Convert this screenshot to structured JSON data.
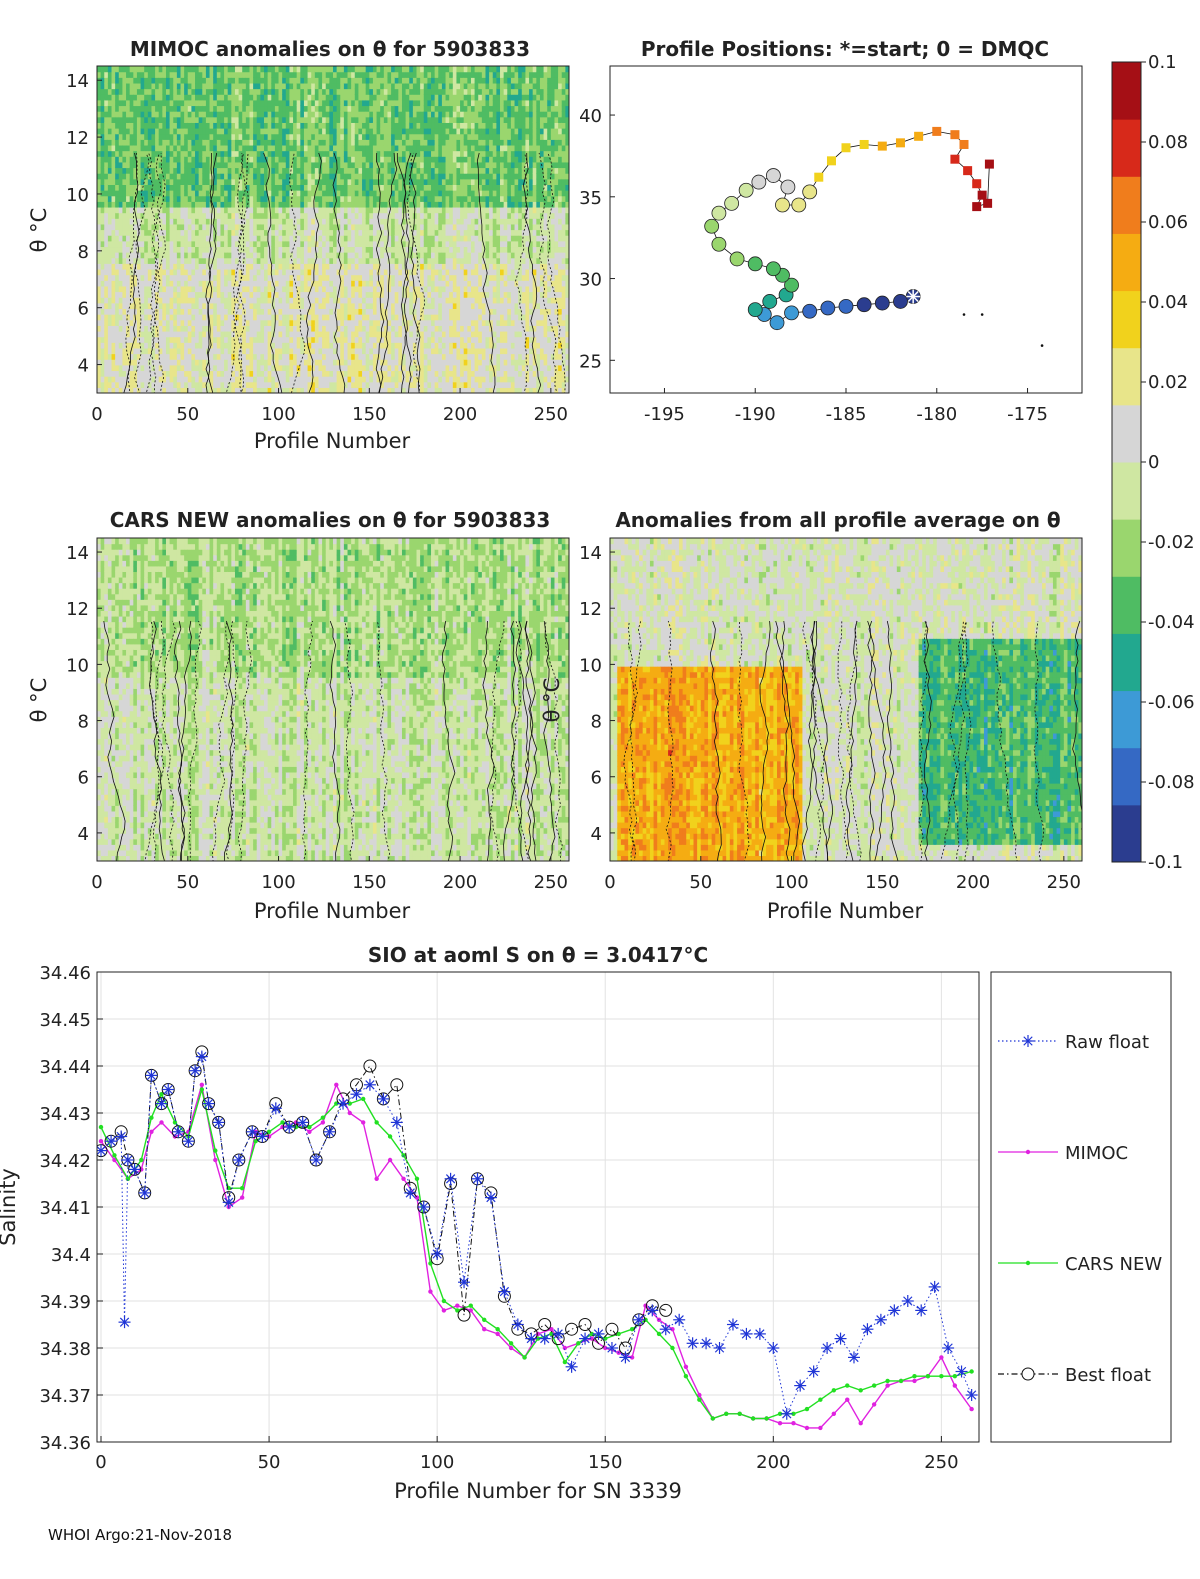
{
  "footer": "WHOI Argo:21-Nov-2018",
  "colorbar": {
    "ticks": [
      "0.1",
      "0.08",
      "0.06",
      "0.04",
      "0.02",
      "0",
      "-0.02",
      "-0.04",
      "-0.06",
      "-0.08",
      "-0.1"
    ],
    "colors": [
      "#2b3d8f",
      "#3569c4",
      "#3d9ad6",
      "#22a88f",
      "#4fbc63",
      "#9ad66e",
      "#cfe7a2",
      "#d6d6d6",
      "#e8e58a",
      "#f1d21c",
      "#f5ac12",
      "#f07d1c",
      "#d7291a",
      "#a50f15"
    ]
  },
  "panels": {
    "mimoc": {
      "title": "MIMOC anomalies on θ  for 5903833",
      "xlabel": "Profile Number",
      "ylabel": "θ °C",
      "xticks": [
        "0",
        "50",
        "100",
        "150",
        "200",
        "250"
      ],
      "yticks": [
        "4",
        "6",
        "8",
        "10",
        "12",
        "14"
      ]
    },
    "positions": {
      "title": "Profile Positions: *=start; 0 = DMQC",
      "xticks": [
        "-195",
        "-190",
        "-185",
        "-180",
        "-175"
      ],
      "yticks": [
        "25",
        "30",
        "35",
        "40"
      ]
    },
    "cars": {
      "title": "CARS NEW anomalies on θ for 5903833",
      "xlabel": "Profile Number",
      "ylabel": "θ °C",
      "xticks": [
        "0",
        "50",
        "100",
        "150",
        "200",
        "250"
      ],
      "yticks": [
        "4",
        "6",
        "8",
        "10",
        "12",
        "14"
      ]
    },
    "avg": {
      "title": "Anomalies from all profile average on θ",
      "xlabel": "Profile Number",
      "ylabel": "θ °C",
      "xticks": [
        "0",
        "50",
        "100",
        "150",
        "200",
        "250"
      ],
      "yticks": [
        "4",
        "6",
        "8",
        "10",
        "12",
        "14"
      ]
    }
  },
  "chart_data": [
    {
      "type": "heatmap",
      "title": "MIMOC anomalies on θ  for 5903833",
      "xlabel": "Profile Number",
      "ylabel": "θ °C",
      "xlim": [
        0,
        260
      ],
      "ylim": [
        3,
        14.5
      ],
      "bands": [
        {
          "from": 9.5,
          "to": 14.5,
          "anomaly": -0.03
        },
        {
          "from": 7.5,
          "to": 9.5,
          "anomaly": -0.005
        },
        {
          "from": 3.0,
          "to": 7.5,
          "anomaly": 0.01
        }
      ]
    },
    {
      "type": "scatter",
      "title": "Profile Positions: *=start; 0 = DMQC",
      "xlim": [
        -198,
        -172
      ],
      "ylim": [
        23,
        43
      ],
      "points": [
        [
          -181.3,
          28.9
        ],
        [
          -182,
          28.6
        ],
        [
          -183,
          28.5
        ],
        [
          -184,
          28.4
        ],
        [
          -185,
          28.3
        ],
        [
          -186,
          28.2
        ],
        [
          -187,
          28.0
        ],
        [
          -188,
          27.9
        ],
        [
          -188.8,
          27.3
        ],
        [
          -189.5,
          27.8
        ],
        [
          -190,
          28.1
        ],
        [
          -189.2,
          28.6
        ],
        [
          -188.3,
          29.0
        ],
        [
          -188,
          29.6
        ],
        [
          -188.5,
          30.2
        ],
        [
          -189,
          30.6
        ],
        [
          -190,
          30.9
        ],
        [
          -191,
          31.2
        ],
        [
          -192,
          32.1
        ],
        [
          -192.4,
          33.2
        ],
        [
          -192,
          34.0
        ],
        [
          -191.3,
          34.6
        ],
        [
          -190.5,
          35.4
        ],
        [
          -189.8,
          35.9
        ],
        [
          -189,
          36.3
        ],
        [
          -188.2,
          35.6
        ],
        [
          -188.5,
          34.5
        ],
        [
          -187.6,
          34.5
        ],
        [
          -187,
          35.3
        ],
        [
          -186.5,
          36.2
        ],
        [
          -185.8,
          37.2
        ],
        [
          -185,
          38.0
        ],
        [
          -184,
          38.2
        ],
        [
          -183,
          38.1
        ],
        [
          -182,
          38.3
        ],
        [
          -181,
          38.7
        ],
        [
          -180,
          39.0
        ],
        [
          -179,
          38.8
        ],
        [
          -178.5,
          38.2
        ],
        [
          -179,
          37.3
        ],
        [
          -178.3,
          36.6
        ],
        [
          -177.8,
          35.8
        ],
        [
          -177.5,
          35.1
        ],
        [
          -177.8,
          34.4
        ],
        [
          -177.2,
          34.6
        ],
        [
          -177.1,
          37.0
        ]
      ],
      "extra_points": [
        [
          -178.5,
          27.8
        ],
        [
          -177.5,
          27.8
        ],
        [
          -174.2,
          25.9
        ]
      ]
    },
    {
      "type": "heatmap",
      "title": "CARS NEW anomalies on θ for 5903833",
      "xlabel": "Profile Number",
      "ylabel": "θ °C",
      "xlim": [
        0,
        260
      ],
      "ylim": [
        3,
        14.5
      ],
      "bands": [
        {
          "from": 9.5,
          "to": 14.5,
          "anomaly": -0.015
        },
        {
          "from": 3.0,
          "to": 9.5,
          "anomaly": -0.005
        }
      ]
    },
    {
      "type": "heatmap",
      "title": "Anomalies from all profile average on θ",
      "xlabel": "Profile Number",
      "ylabel": "θ °C",
      "xlim": [
        0,
        260
      ],
      "ylim": [
        3,
        14.5
      ],
      "regions": [
        {
          "x": [
            5,
            105
          ],
          "y": [
            3,
            10
          ],
          "anomaly": 0.05
        },
        {
          "x": [
            170,
            260
          ],
          "y": [
            3.5,
            11
          ],
          "anomaly": -0.04
        }
      ]
    },
    {
      "type": "line",
      "title": "SIO at aoml S on θ = 3.0417°C",
      "xlabel": "Profile Number for SN 3339",
      "ylabel": "Salinity",
      "xlim": [
        0,
        260
      ],
      "ylim": [
        34.36,
        34.46
      ],
      "xticks": [
        "0",
        "50",
        "100",
        "150",
        "200",
        "250"
      ],
      "yticks": [
        "34.36",
        "34.37",
        "34.38",
        "34.39",
        "34.4",
        "34.41",
        "34.42",
        "34.43",
        "34.44",
        "34.45",
        "34.46"
      ],
      "series": [
        {
          "name": "Raw float",
          "color": "#1f35d6",
          "style": "dotted-star",
          "x": [
            0,
            3,
            6,
            7,
            8,
            10,
            13,
            15,
            18,
            20,
            23,
            26,
            28,
            30,
            32,
            35,
            38,
            41,
            45,
            48,
            52,
            56,
            60,
            64,
            68,
            72,
            76,
            80,
            84,
            88,
            92,
            96,
            100,
            104,
            108,
            112,
            116,
            120,
            124,
            128,
            132,
            136,
            140,
            144,
            148,
            152,
            156,
            160,
            164,
            168,
            172,
            176,
            180,
            184,
            188,
            192,
            196,
            200,
            204,
            208,
            212,
            216,
            220,
            224,
            228,
            232,
            236,
            240,
            244,
            248,
            252,
            256,
            259
          ],
          "y": [
            34.422,
            34.424,
            34.425,
            34.3855,
            34.42,
            34.418,
            34.413,
            34.438,
            34.432,
            34.435,
            34.426,
            34.424,
            34.439,
            34.442,
            34.432,
            34.428,
            34.411,
            34.42,
            34.426,
            34.425,
            34.431,
            34.427,
            34.428,
            34.42,
            34.426,
            34.432,
            34.434,
            34.436,
            34.433,
            34.428,
            34.413,
            34.41,
            34.4,
            34.416,
            34.394,
            34.416,
            34.412,
            34.392,
            34.385,
            34.382,
            34.382,
            34.383,
            34.376,
            34.382,
            34.383,
            34.38,
            34.378,
            34.386,
            34.388,
            34.384,
            34.386,
            34.381,
            34.381,
            34.38,
            34.385,
            34.383,
            34.383,
            34.38,
            34.366,
            34.372,
            34.375,
            34.38,
            34.382,
            34.378,
            34.384,
            34.386,
            34.388,
            34.39,
            34.388,
            34.393,
            34.38,
            34.375,
            34.37
          ]
        },
        {
          "name": "MIMOC",
          "color": "#e022e0",
          "style": "solid-dot",
          "x": [
            0,
            4,
            8,
            12,
            15,
            18,
            22,
            26,
            30,
            34,
            38,
            42,
            46,
            50,
            54,
            58,
            62,
            66,
            70,
            74,
            78,
            82,
            86,
            90,
            94,
            98,
            102,
            106,
            110,
            114,
            118,
            122,
            126,
            130,
            134,
            138,
            142,
            146,
            150,
            154,
            158,
            162,
            166,
            170,
            174,
            178,
            182,
            186,
            190,
            194,
            198,
            202,
            206,
            210,
            214,
            218,
            222,
            226,
            230,
            234,
            238,
            242,
            246,
            250,
            254,
            259
          ],
          "y": [
            34.424,
            34.42,
            34.416,
            34.418,
            34.426,
            34.428,
            34.425,
            34.426,
            34.436,
            34.42,
            34.41,
            34.412,
            34.426,
            34.425,
            34.427,
            34.428,
            34.426,
            34.428,
            34.436,
            34.43,
            34.428,
            34.416,
            34.42,
            34.416,
            34.412,
            34.392,
            34.388,
            34.389,
            34.388,
            34.384,
            34.383,
            34.38,
            34.378,
            34.383,
            34.384,
            34.38,
            34.381,
            34.382,
            34.38,
            34.379,
            34.378,
            34.389,
            34.386,
            34.384,
            34.376,
            34.37,
            34.365,
            34.366,
            34.366,
            34.365,
            34.365,
            34.364,
            34.364,
            34.363,
            34.363,
            34.366,
            34.369,
            34.364,
            34.368,
            34.372,
            34.373,
            34.373,
            34.374,
            34.378,
            34.372,
            34.367
          ]
        },
        {
          "name": "CARS NEW",
          "color": "#22e022",
          "style": "solid-dot",
          "x": [
            0,
            4,
            8,
            12,
            15,
            18,
            22,
            26,
            30,
            34,
            38,
            42,
            46,
            50,
            54,
            58,
            62,
            66,
            70,
            74,
            78,
            82,
            86,
            90,
            94,
            98,
            102,
            106,
            110,
            114,
            118,
            122,
            126,
            130,
            134,
            138,
            142,
            146,
            150,
            154,
            158,
            162,
            166,
            170,
            174,
            178,
            182,
            186,
            190,
            194,
            198,
            202,
            206,
            210,
            214,
            218,
            222,
            226,
            230,
            234,
            238,
            242,
            246,
            250,
            254,
            259
          ],
          "y": [
            34.427,
            34.421,
            34.416,
            34.42,
            34.429,
            34.434,
            34.428,
            34.425,
            34.435,
            34.422,
            34.414,
            34.414,
            34.424,
            34.426,
            34.428,
            34.427,
            34.427,
            34.429,
            34.432,
            34.432,
            34.433,
            34.428,
            34.425,
            34.421,
            34.416,
            34.398,
            34.39,
            34.388,
            34.389,
            34.386,
            34.384,
            34.381,
            34.378,
            34.382,
            34.383,
            34.377,
            34.381,
            34.383,
            34.382,
            34.383,
            34.384,
            34.386,
            34.383,
            34.38,
            34.374,
            34.369,
            34.365,
            34.366,
            34.366,
            34.365,
            34.365,
            34.366,
            34.366,
            34.367,
            34.369,
            34.371,
            34.372,
            34.371,
            34.372,
            34.373,
            34.373,
            34.374,
            34.374,
            34.374,
            34.374,
            34.375
          ]
        },
        {
          "name": "Best float",
          "color": "#111111",
          "style": "dashdot-circle",
          "x": [
            0,
            3,
            6,
            8,
            10,
            13,
            15,
            18,
            20,
            23,
            26,
            28,
            30,
            32,
            35,
            38,
            41,
            45,
            48,
            52,
            56,
            60,
            64,
            68,
            72,
            76,
            80,
            84,
            88,
            92,
            96,
            100,
            104,
            108,
            112,
            116,
            120,
            124,
            128,
            132,
            136,
            140,
            144,
            148,
            152,
            156,
            160,
            164,
            168
          ],
          "y": [
            34.422,
            34.424,
            34.426,
            34.42,
            34.418,
            34.413,
            34.438,
            34.432,
            34.435,
            34.426,
            34.424,
            34.439,
            34.443,
            34.432,
            34.428,
            34.412,
            34.42,
            34.426,
            34.425,
            34.432,
            34.427,
            34.428,
            34.42,
            34.426,
            34.433,
            34.436,
            34.44,
            34.433,
            34.436,
            34.414,
            34.41,
            34.399,
            34.415,
            34.387,
            34.416,
            34.413,
            34.391,
            34.384,
            34.383,
            34.385,
            34.382,
            34.384,
            34.385,
            34.381,
            34.384,
            34.38,
            34.386,
            34.389,
            34.388
          ]
        }
      ]
    }
  ]
}
